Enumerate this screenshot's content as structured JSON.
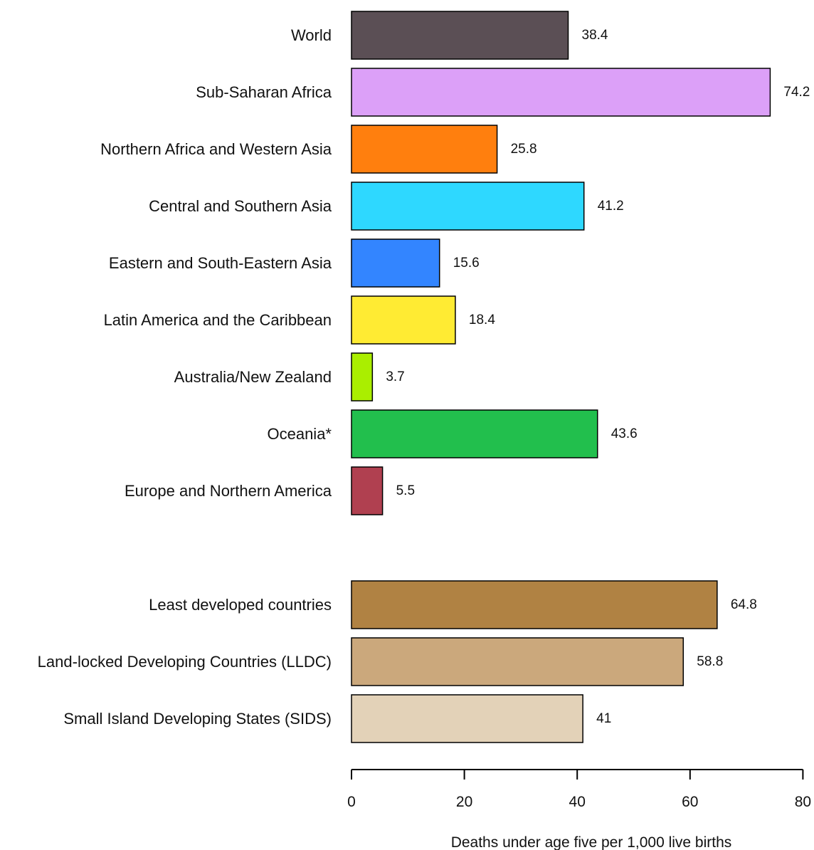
{
  "chart_data": {
    "type": "bar",
    "orientation": "horizontal",
    "categories": [
      "World",
      "Sub-Saharan Africa",
      "Northern Africa and Western Asia",
      "Central and Southern Asia",
      "Eastern and South-Eastern Asia",
      "Latin America and the Caribbean",
      "Australia/New Zealand",
      "Oceania*",
      "Europe and Northern America",
      "Least developed countries",
      "Land-locked Developing Countries (LLDC)",
      "Small Island Developing States (SIDS)"
    ],
    "values": [
      38.4,
      74.2,
      25.8,
      41.2,
      15.6,
      18.4,
      3.7,
      43.6,
      5.5,
      64.8,
      58.8,
      41
    ],
    "value_labels": [
      "38.4",
      "74.2",
      "25.8",
      "41.2",
      "15.6",
      "18.4",
      "3.7",
      "43.6",
      "5.5",
      "64.8",
      "58.8",
      "41"
    ],
    "colors": [
      "#5b4f55",
      "#dca0f8",
      "#ff7f0e",
      "#2ed8ff",
      "#3385ff",
      "#ffeb33",
      "#aaee00",
      "#22bf4d",
      "#b04050",
      "#b08243",
      "#cba87c",
      "#e3d2b8"
    ],
    "groups": [
      {
        "name": "",
        "count": 9
      },
      {
        "name": "",
        "count": 3
      }
    ],
    "xlabel": "Deaths under age five per 1,000 live births",
    "xlim": [
      0,
      80
    ],
    "xticks": [
      "0",
      "20",
      "40",
      "60",
      "80"
    ],
    "grid": false,
    "legend": "none"
  }
}
